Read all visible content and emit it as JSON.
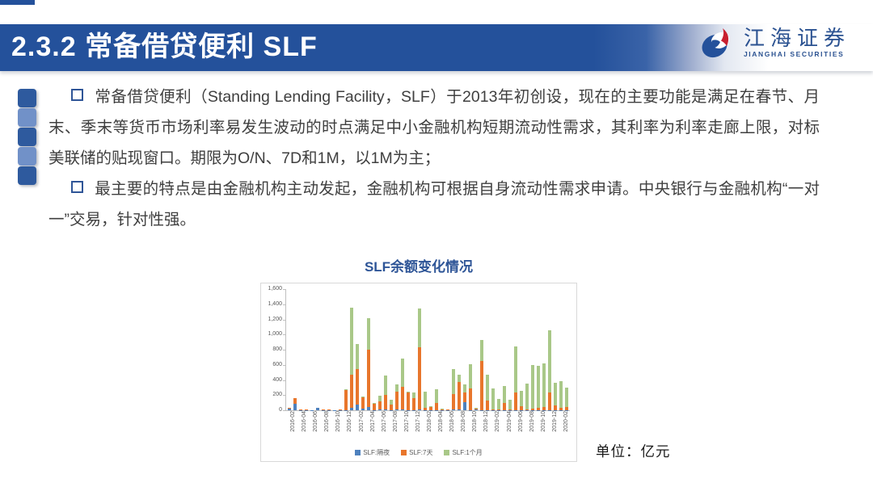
{
  "slide": {
    "title": "2.3.2 常备借贷便利 SLF",
    "logo": {
      "name_cn": "江海证券",
      "name_en": "JIANGHAI SECURITIES"
    },
    "bullets": [
      {
        "text": "常备借贷便利（Standing Lending Facility，SLF）于2013年初创设，现在的主要功能是满足在春节、月末、季末等货币市场利率易发生波动的时点满足中小金融机构短期流动性需求，其利率为利率走廊上限，对标美联储的贴现窗口。期限为O/N、7D和1M，以1M为主；"
      },
      {
        "text": "最主要的特点是由金融机构主动发起，金融机构可根据自身流动性需求申请。中央银行与金融机构“一对一”交易，针对性强。"
      }
    ],
    "unit_note": "单位：亿元"
  },
  "colors": {
    "band_blue": "#24519b",
    "accent_blue": "#2f5597",
    "logo_blue": "#2b5291",
    "logo_red": "#c8202f"
  },
  "chart_data": {
    "type": "bar",
    "stacked": true,
    "title": "SLF余额变化情况",
    "unit": "亿元",
    "grid": false,
    "legend_position": "bottom",
    "ylim": [
      0,
      1600
    ],
    "ytick_step": 200,
    "x_label_every": 2,
    "x": [
      "2016-01",
      "2016-02",
      "2016-03",
      "2016-04",
      "2016-05",
      "2016-06",
      "2016-07",
      "2016-08",
      "2016-09",
      "2016-10",
      "2016-11",
      "2016-12",
      "2017-01",
      "2017-02",
      "2017-03",
      "2017-04",
      "2017-05",
      "2017-06",
      "2017-07",
      "2017-08",
      "2017-09",
      "2017-10",
      "2017-11",
      "2017-12",
      "2018-01",
      "2018-02",
      "2018-03",
      "2018-04",
      "2018-05",
      "2018-06",
      "2018-07",
      "2018-08",
      "2018-09",
      "2018-10",
      "2018-11",
      "2018-12",
      "2019-01",
      "2019-02",
      "2019-03",
      "2019-04",
      "2019-05",
      "2019-06",
      "2019-07",
      "2019-08",
      "2019-09",
      "2019-10",
      "2019-11",
      "2019-12",
      "2020-01",
      "2020-02"
    ],
    "series": [
      {
        "name": "SLF:隔夜",
        "color": "#4e81bd",
        "values": [
          25,
          85,
          5,
          3,
          2,
          28,
          3,
          3,
          2,
          3,
          5,
          35,
          70,
          25,
          45,
          5,
          10,
          10,
          5,
          10,
          10,
          5,
          5,
          15,
          5,
          5,
          5,
          5,
          3,
          10,
          10,
          110,
          5,
          10,
          5,
          5,
          5,
          5,
          5,
          5,
          3,
          3,
          3,
          3,
          3,
          3,
          5,
          3,
          3,
          3
        ]
      },
      {
        "name": "SLF:7天",
        "color": "#e8762c",
        "values": [
          5,
          80,
          5,
          3,
          2,
          5,
          3,
          5,
          3,
          5,
          265,
          430,
          470,
          145,
          760,
          85,
          110,
          195,
          75,
          240,
          300,
          235,
          160,
          815,
          25,
          40,
          95,
          10,
          5,
          205,
          360,
          120,
          285,
          15,
          645,
          125,
          5,
          10,
          90,
          10,
          235,
          50,
          10,
          20,
          30,
          40,
          235,
          65,
          30,
          40
        ]
      },
      {
        "name": "SLF:1个月",
        "color": "#a9c888",
        "values": [
          0,
          0,
          0,
          0,
          0,
          0,
          0,
          0,
          0,
          0,
          5,
          885,
          335,
          10,
          410,
          5,
          70,
          255,
          55,
          95,
          375,
          5,
          70,
          510,
          220,
          10,
          175,
          5,
          5,
          325,
          95,
          115,
          320,
          5,
          275,
          340,
          280,
          135,
          225,
          120,
          600,
          200,
          340,
          575,
          555,
          575,
          815,
          290,
          355,
          255
        ]
      }
    ]
  }
}
